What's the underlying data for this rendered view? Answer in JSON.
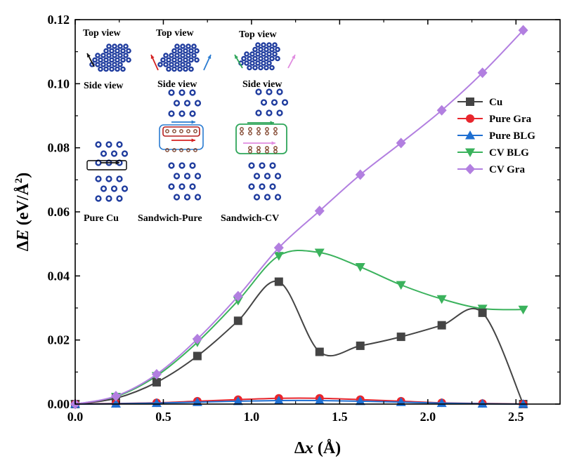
{
  "chart_data": {
    "type": "line",
    "xlabel": "Δx (Å)",
    "xlabel_parts": [
      "Δ",
      "x",
      " (Å)"
    ],
    "ylabel": "ΔE (eV/Å²)",
    "ylabel_parts": [
      "Δ",
      "E",
      " (eV/Å",
      "2",
      ")"
    ],
    "xlim": [
      0,
      2.75
    ],
    "ylim": [
      0,
      0.12
    ],
    "xticks": [
      "0.0",
      "0.5",
      "1.0",
      "1.5",
      "2.0",
      "2.5"
    ],
    "xtick_values": [
      0,
      0.5,
      1.0,
      1.5,
      2.0,
      2.5
    ],
    "yticks": [
      "0.00",
      "0.02",
      "0.04",
      "0.06",
      "0.08",
      "0.10",
      "0.12"
    ],
    "ytick_values": [
      0,
      0.02,
      0.04,
      0.06,
      0.08,
      0.1,
      0.12
    ],
    "x": [
      0,
      0.231,
      0.462,
      0.693,
      0.924,
      1.155,
      1.386,
      1.617,
      1.848,
      2.079,
      2.31,
      2.541
    ],
    "legend_position": "right",
    "series": [
      {
        "name": "Cu",
        "color": "#444444",
        "marker": "square",
        "values": [
          0,
          0.0018,
          0.0068,
          0.015,
          0.026,
          0.0382,
          0.0163,
          0.0182,
          0.021,
          0.0246,
          0.0285,
          0
        ]
      },
      {
        "name": "Pure Gra",
        "color": "#e8262d",
        "marker": "circle",
        "values": [
          0,
          0.0002,
          0.0004,
          0.0009,
          0.0014,
          0.0018,
          0.0018,
          0.0014,
          0.0009,
          0.0004,
          0.0002,
          0
        ]
      },
      {
        "name": "Pure BLG",
        "color": "#1f6fd1",
        "marker": "triangle-up",
        "values": [
          0,
          0.0001,
          0.0003,
          0.0006,
          0.0009,
          0.0011,
          0.0011,
          0.0009,
          0.0006,
          0.0003,
          0.0001,
          0
        ]
      },
      {
        "name": "CV BLG",
        "color": "#3ab25c",
        "marker": "triangle-down",
        "values": [
          0,
          0.0023,
          0.0088,
          0.0193,
          0.0323,
          0.0463,
          0.0473,
          0.0428,
          0.0372,
          0.0328,
          0.0298,
          0.0295
        ]
      },
      {
        "name": "CV Gra",
        "color": "#b27fe0",
        "marker": "diamond",
        "values": [
          0,
          0.0025,
          0.0093,
          0.0203,
          0.0337,
          0.0488,
          0.0603,
          0.0716,
          0.0815,
          0.0917,
          0.1034,
          0.1167
        ]
      }
    ],
    "inset": {
      "top_view": "Top view",
      "side_view": "Side view",
      "panels": [
        "Pure Cu",
        "Sandwich-Pure",
        "Sandwich-CV"
      ]
    }
  },
  "colors": {
    "atom": "#1f3c9e",
    "atom_highlight": "#4a78d8",
    "carbon": "#7a3b22",
    "arrow_black": "#111111",
    "arrow_red": "#d42121",
    "arrow_blue": "#2a7bd1",
    "arrow_green": "#2fa65a",
    "arrow_pink": "#e08be0",
    "box_blue": "#2a7bd1",
    "box_green": "#2fa65a",
    "box_red": "#b51d1d"
  }
}
